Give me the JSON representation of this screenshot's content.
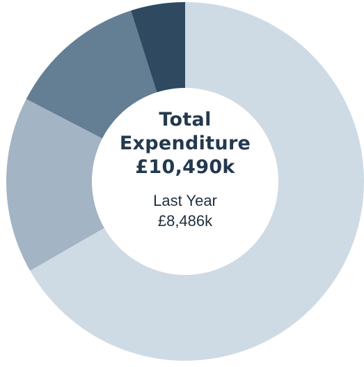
{
  "chart_data": {
    "type": "pie",
    "variant": "donut",
    "title_lines": [
      "Total",
      "Expenditure"
    ],
    "total_value": "£10,490k",
    "comparison_label": "Last Year",
    "comparison_value": "£8,486k",
    "values": [
      66.7,
      15.9,
      12.5,
      4.9
    ],
    "colors": [
      "#cfdbe4",
      "#a3b4c4",
      "#647e94",
      "#2f4a60"
    ],
    "start_angle_deg": 0,
    "direction": "clockwise",
    "legend": "none"
  }
}
